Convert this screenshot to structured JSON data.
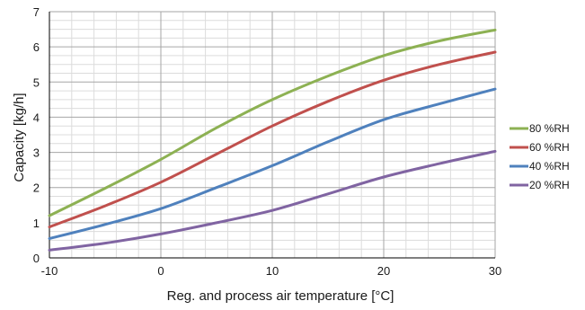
{
  "chart_data": {
    "type": "line",
    "xlabel": "Reg. and process air temperature [°C]",
    "ylabel": "Capacity [kg/h]",
    "xlim": [
      -10,
      30
    ],
    "ylim": [
      0,
      7
    ],
    "xticks": [
      -10,
      0,
      10,
      20,
      30
    ],
    "yticks": [
      0,
      1,
      2,
      3,
      4,
      5,
      6,
      7
    ],
    "grid": true,
    "legend": "right",
    "series": [
      {
        "name": "80 %RH",
        "color": "#8db153",
        "x": [
          -10,
          -5,
          0,
          5,
          10,
          15,
          20,
          25,
          30
        ],
        "y": [
          1.2,
          1.98,
          2.8,
          3.7,
          4.5,
          5.17,
          5.75,
          6.17,
          6.48
        ]
      },
      {
        "name": "60 %RH",
        "color": "#c0504d",
        "x": [
          -10,
          -5,
          0,
          5,
          10,
          15,
          20,
          25,
          30
        ],
        "y": [
          0.88,
          1.48,
          2.15,
          2.95,
          3.75,
          4.45,
          5.05,
          5.5,
          5.85
        ]
      },
      {
        "name": "40 %RH",
        "color": "#4f81bd",
        "x": [
          -10,
          -5,
          0,
          5,
          10,
          15,
          20,
          25,
          30
        ],
        "y": [
          0.55,
          0.95,
          1.4,
          2.0,
          2.62,
          3.3,
          3.93,
          4.38,
          4.8
        ]
      },
      {
        "name": "20 %RH",
        "color": "#8064a2",
        "x": [
          -10,
          -5,
          0,
          5,
          10,
          15,
          20,
          25,
          30
        ],
        "y": [
          0.22,
          0.42,
          0.68,
          1.0,
          1.35,
          1.82,
          2.3,
          2.68,
          3.03
        ]
      }
    ]
  }
}
